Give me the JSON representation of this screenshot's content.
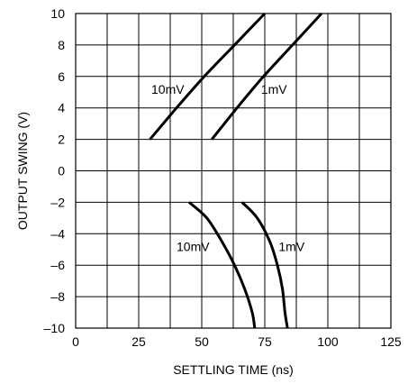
{
  "chart_data": {
    "type": "line",
    "title": "",
    "xlabel": "SETTLING TIME (ns)",
    "ylabel": "OUTPUT SWING (V)",
    "xlim": [
      0,
      125
    ],
    "ylim": [
      -10,
      10
    ],
    "xticks": [
      0,
      25,
      50,
      75,
      100,
      125
    ],
    "yticks": [
      10,
      8,
      6,
      4,
      2,
      0,
      -2,
      -4,
      -6,
      -8,
      -10
    ],
    "xtick_labels": [
      "0",
      "25",
      "50",
      "75",
      "100",
      "125"
    ],
    "ytick_labels": [
      "10",
      "8",
      "6",
      "4",
      "2",
      "0",
      "–2",
      "–4",
      "–6",
      "–8",
      "–10"
    ],
    "grid": true,
    "series": [
      {
        "points": [
          [
            29.5,
            2
          ],
          [
            40,
            4
          ],
          [
            51,
            6
          ],
          [
            63,
            8
          ],
          [
            75,
            10
          ]
        ]
      },
      {
        "points": [
          [
            54,
            2
          ],
          [
            64,
            4
          ],
          [
            74.5,
            6
          ],
          [
            86,
            8
          ],
          [
            97.5,
            10
          ]
        ]
      },
      {
        "points": [
          [
            45,
            -2
          ],
          [
            52,
            -3
          ],
          [
            58,
            -4.5
          ],
          [
            63,
            -6
          ],
          [
            67,
            -7.5
          ],
          [
            70,
            -9
          ],
          [
            71,
            -10
          ]
        ]
      },
      {
        "points": [
          [
            66,
            -2
          ],
          [
            72,
            -3
          ],
          [
            77,
            -4.5
          ],
          [
            80,
            -6
          ],
          [
            82,
            -7.5
          ],
          [
            83,
            -9
          ],
          [
            84,
            -10
          ]
        ]
      }
    ],
    "annotations": [
      {
        "text": "10mV",
        "x": 30,
        "y": 4.9
      },
      {
        "text": "1mV",
        "x": 73.5,
        "y": 4.9
      },
      {
        "text": "10mV",
        "x": 40,
        "y": -5.1
      },
      {
        "text": "1mV",
        "x": 80.5,
        "y": -5.1
      }
    ]
  }
}
